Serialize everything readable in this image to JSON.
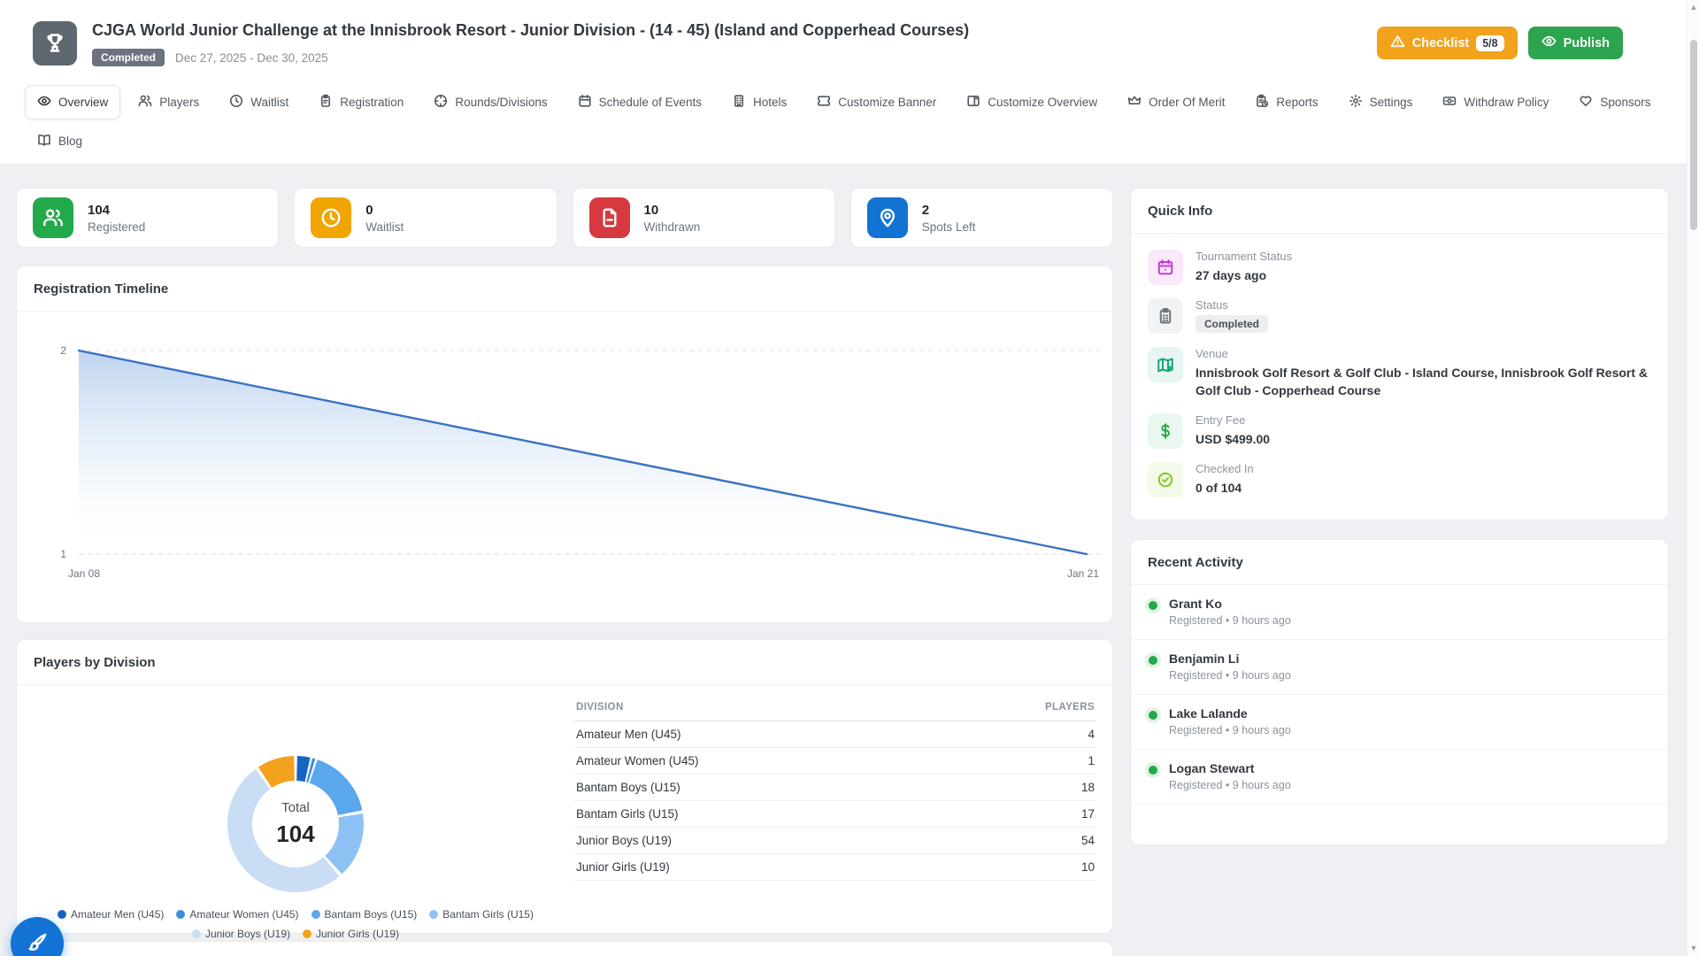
{
  "header": {
    "title": "CJGA World Junior Challenge at the Innisbrook Resort - Junior Division - (14 - 45) (Island and Copperhead Courses)",
    "status_badge": "Completed",
    "dates": "Dec 27, 2025 - Dec 30, 2025",
    "checklist_label": "Checklist",
    "checklist_count": "5/8",
    "publish_label": "Publish"
  },
  "nav": {
    "tabs": [
      {
        "label": "Overview",
        "icon": "eye-icon",
        "active": true
      },
      {
        "label": "Players",
        "icon": "users-icon"
      },
      {
        "label": "Waitlist",
        "icon": "clock-icon"
      },
      {
        "label": "Registration",
        "icon": "clipboard-icon"
      },
      {
        "label": "Rounds/Divisions",
        "icon": "target-icon"
      },
      {
        "label": "Schedule of Events",
        "icon": "calendar-icon"
      },
      {
        "label": "Hotels",
        "icon": "building-icon"
      },
      {
        "label": "Customize Banner",
        "icon": "ticket-icon"
      },
      {
        "label": "Customize Overview",
        "icon": "layout-icon"
      },
      {
        "label": "Order Of Merit",
        "icon": "crown-icon"
      },
      {
        "label": "Reports",
        "icon": "report-icon"
      },
      {
        "label": "Settings",
        "icon": "gear-icon"
      },
      {
        "label": "Withdraw Policy",
        "icon": "banknote-icon"
      },
      {
        "label": "Sponsors",
        "icon": "heart-icon"
      },
      {
        "label": "Blog",
        "icon": "book-icon"
      }
    ]
  },
  "stats": [
    {
      "value": "104",
      "label": "Registered",
      "icon": "users-icon",
      "color": "#22a94a"
    },
    {
      "value": "0",
      "label": "Waitlist",
      "icon": "clock-icon",
      "color": "#f0a500"
    },
    {
      "value": "10",
      "label": "Withdrawn",
      "icon": "file-minus-icon",
      "color": "#d6393f"
    },
    {
      "value": "2",
      "label": "Spots Left",
      "icon": "map-pin-icon",
      "color": "#1273d4"
    }
  ],
  "players_by_division": {
    "title": "Players by Division",
    "table": {
      "headers": [
        "DIVISION",
        "PLAYERS"
      ],
      "rows": [
        [
          "Amateur Men (U45)",
          "4"
        ],
        [
          "Amateur Women (U45)",
          "1"
        ],
        [
          "Bantam Boys (U15)",
          "18"
        ],
        [
          "Bantam Girls (U15)",
          "17"
        ],
        [
          "Junior Boys (U19)",
          "54"
        ],
        [
          "Junior Girls (U19)",
          "10"
        ]
      ]
    }
  },
  "quick_info": {
    "title": "Quick Info",
    "items": [
      {
        "label": "Tournament Status",
        "value": "27 days ago",
        "icon": "calendar-icon",
        "icon_color": "#c23bd4",
        "icon_bg": "#f9e9fb"
      },
      {
        "label": "Status",
        "value": "Completed",
        "icon": "clipboard-icon",
        "icon_color": "#6c757d",
        "icon_bg": "#f1f3f5"
      },
      {
        "label": "Venue",
        "value": "Innisbrook Golf Resort & Golf Club - Island Course, Innisbrook Golf Resort & Golf Club - Copperhead Course",
        "icon": "map-icon",
        "icon_color": "#17a57e",
        "icon_bg": "#e7f6f0"
      },
      {
        "label": "Entry Fee",
        "value": "USD $499.00",
        "icon": "dollar-icon",
        "icon_color": "#28a745",
        "icon_bg": "#eaf7ee"
      },
      {
        "label": "Checked In",
        "value": "0 of 104",
        "icon": "check-circle-icon",
        "icon_color": "#82c91e",
        "icon_bg": "#f3faea"
      }
    ]
  },
  "recent_activity": {
    "title": "Recent Activity",
    "items": [
      {
        "name": "Grant Ko",
        "detail": "Registered • 9 hours ago"
      },
      {
        "name": "Benjamin Li",
        "detail": "Registered • 9 hours ago"
      },
      {
        "name": "Lake Lalande",
        "detail": "Registered • 9 hours ago"
      },
      {
        "name": "Logan Stewart",
        "detail": "Registered • 9 hours ago"
      }
    ]
  },
  "chart_data": [
    {
      "type": "area",
      "title": "Registration Timeline",
      "x_labels": [
        "Jan 08",
        "Jan 21"
      ],
      "series": [
        {
          "name": "Registrations",
          "values": [
            [
              "Jan 08",
              2
            ],
            [
              "Jan 21",
              1
            ]
          ]
        }
      ],
      "ylim": [
        1,
        2
      ],
      "yticks": [
        1,
        2
      ],
      "grid": "horizontal-dashed",
      "line_color": "#3a72c2",
      "fill": "light-blue-gradient"
    },
    {
      "type": "donut",
      "title": "Players by Division",
      "center_label": "Total",
      "total": 104,
      "categories": [
        "Amateur Men (U45)",
        "Amateur Women (U45)",
        "Bantam Boys (U15)",
        "Bantam Girls (U15)",
        "Junior Boys (U19)",
        "Junior Girls (U19)"
      ],
      "values": [
        4,
        1,
        18,
        17,
        54,
        10
      ],
      "colors": [
        "#1565c0",
        "#3b8de0",
        "#5ba7ec",
        "#8fc2f4",
        "#c9ddf5",
        "#f2a21c"
      ],
      "legend_position": "bottom"
    }
  ]
}
